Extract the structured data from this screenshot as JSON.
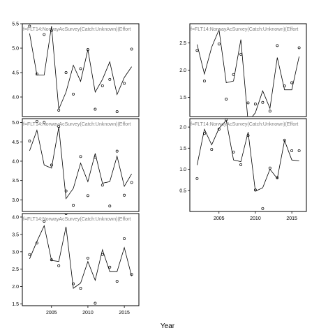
{
  "figure": {
    "xlabel": "Year"
  },
  "chart_data": [
    {
      "type": "scatter",
      "strip_label": "f=FLT14:NorwayAcSurvey(Catch:Unknown)(Effort",
      "xlim": [
        2001,
        2017
      ],
      "ylim": [
        3.6,
        5.5
      ],
      "y_ticks": [
        4.0,
        4.5,
        5.0,
        5.5
      ],
      "show_x_ticks": false,
      "observed": [
        [
          2002,
          5.45
        ],
        [
          2003,
          4.47
        ],
        [
          2004,
          5.28
        ],
        [
          2005,
          5.36
        ],
        [
          2006,
          3.73
        ],
        [
          2007,
          4.5
        ],
        [
          2008,
          4.06
        ],
        [
          2009,
          4.58
        ],
        [
          2010,
          4.97
        ],
        [
          2011,
          3.75
        ],
        [
          2012,
          4.23
        ],
        [
          2013,
          4.36
        ],
        [
          2014,
          3.7
        ],
        [
          2015,
          4.28
        ],
        [
          2016,
          4.98
        ]
      ],
      "fitted": [
        [
          2002,
          5.3
        ],
        [
          2003,
          4.45
        ],
        [
          2004,
          4.45
        ],
        [
          2005,
          5.45
        ],
        [
          2006,
          3.75
        ],
        [
          2007,
          4.1
        ],
        [
          2008,
          4.65
        ],
        [
          2009,
          4.32
        ],
        [
          2010,
          4.97
        ],
        [
          2011,
          4.1
        ],
        [
          2012,
          4.36
        ],
        [
          2013,
          4.72
        ],
        [
          2014,
          4.05
        ],
        [
          2015,
          4.4
        ],
        [
          2016,
          4.62
        ]
      ]
    },
    {
      "type": "scatter",
      "strip_label": "f=FLT14:NorwayAcSurvey(Catch:Unknown)(Effort",
      "xlim": [
        2001,
        2017
      ],
      "ylim": [
        1.15,
        2.85
      ],
      "y_ticks": [
        1.5,
        2.0,
        2.5
      ],
      "show_x_ticks": false,
      "observed": [
        [
          2002,
          2.36
        ],
        [
          2003,
          1.8
        ],
        [
          2004,
          2.87
        ],
        [
          2005,
          2.48
        ],
        [
          2006,
          1.47
        ],
        [
          2007,
          1.92
        ],
        [
          2008,
          2.29
        ],
        [
          2009,
          1.4
        ],
        [
          2010,
          1.38
        ],
        [
          2011,
          1.41
        ],
        [
          2012,
          1.25
        ],
        [
          2013,
          2.45
        ],
        [
          2014,
          1.71
        ],
        [
          2015,
          1.77
        ],
        [
          2016,
          2.41
        ]
      ],
      "fitted": [
        [
          2002,
          2.47
        ],
        [
          2003,
          1.93
        ],
        [
          2004,
          2.42
        ],
        [
          2005,
          2.74
        ],
        [
          2006,
          1.77
        ],
        [
          2007,
          1.8
        ],
        [
          2008,
          2.56
        ],
        [
          2009,
          1.05
        ],
        [
          2010,
          1.22
        ],
        [
          2011,
          1.62
        ],
        [
          2012,
          1.3
        ],
        [
          2013,
          2.23
        ],
        [
          2014,
          1.64
        ],
        [
          2015,
          1.64
        ],
        [
          2016,
          2.25
        ]
      ]
    },
    {
      "type": "scatter",
      "strip_label": "f=FLT14:NorwayAcSurvey(Catch:Unknown)(Effort",
      "xlim": [
        2001,
        2017
      ],
      "ylim": [
        2.7,
        5.1
      ],
      "y_ticks": [
        3.0,
        3.5,
        4.0,
        4.5,
        5.0
      ],
      "show_x_ticks": false,
      "observed": [
        [
          2002,
          4.52
        ],
        [
          2003,
          5.03
        ],
        [
          2004,
          5.0
        ],
        [
          2005,
          3.9
        ],
        [
          2006,
          4.9
        ],
        [
          2007,
          3.23
        ],
        [
          2008,
          2.86
        ],
        [
          2009,
          4.12
        ],
        [
          2010,
          3.11
        ],
        [
          2011,
          4.1
        ],
        [
          2012,
          3.38
        ],
        [
          2013,
          2.84
        ],
        [
          2014,
          4.26
        ],
        [
          2015,
          3.12
        ],
        [
          2016,
          3.45
        ]
      ],
      "fitted": [
        [
          2002,
          4.27
        ],
        [
          2003,
          4.8
        ],
        [
          2004,
          3.9
        ],
        [
          2005,
          3.82
        ],
        [
          2006,
          4.88
        ],
        [
          2007,
          3.03
        ],
        [
          2008,
          3.3
        ],
        [
          2009,
          3.95
        ],
        [
          2010,
          3.47
        ],
        [
          2011,
          4.2
        ],
        [
          2012,
          3.43
        ],
        [
          2013,
          3.47
        ],
        [
          2014,
          4.13
        ],
        [
          2015,
          3.35
        ],
        [
          2016,
          3.67
        ]
      ]
    },
    {
      "type": "scatter",
      "strip_label": "f=FLT14:NorwayAcSurvey(Catch:Unknown)(Effort",
      "xlim": [
        2001,
        2017
      ],
      "ylim": [
        0,
        2.2
      ],
      "y_ticks": [
        0.5,
        1.0,
        1.5,
        2.0
      ],
      "show_x_ticks": true,
      "x_ticks": [
        2005,
        2010,
        2015
      ],
      "observed": [
        [
          2002,
          0.78
        ],
        [
          2003,
          1.85
        ],
        [
          2004,
          1.47
        ],
        [
          2005,
          1.95
        ],
        [
          2006,
          2.17
        ],
        [
          2007,
          1.41
        ],
        [
          2008,
          1.11
        ],
        [
          2009,
          1.8
        ],
        [
          2010,
          0.51
        ],
        [
          2011,
          0.07
        ],
        [
          2012,
          1.03
        ],
        [
          2013,
          0.8
        ],
        [
          2014,
          1.69
        ],
        [
          2015,
          1.44
        ],
        [
          2016,
          1.44
        ]
      ],
      "fitted": [
        [
          2002,
          1.1
        ],
        [
          2003,
          1.95
        ],
        [
          2004,
          1.58
        ],
        [
          2005,
          1.97
        ],
        [
          2006,
          2.16
        ],
        [
          2007,
          1.22
        ],
        [
          2008,
          1.18
        ],
        [
          2009,
          1.88
        ],
        [
          2010,
          0.48
        ],
        [
          2011,
          0.56
        ],
        [
          2012,
          1.0
        ],
        [
          2013,
          0.78
        ],
        [
          2014,
          1.68
        ],
        [
          2015,
          1.22
        ],
        [
          2016,
          1.2
        ]
      ]
    },
    {
      "type": "scatter",
      "strip_label": "f=FLT14:NorwayAcSurvey(Catch:Unknown)(Effort",
      "xlim": [
        2001,
        2017
      ],
      "ylim": [
        1.45,
        4.1
      ],
      "y_ticks": [
        1.5,
        2.0,
        2.5,
        3.0,
        3.5,
        4.0
      ],
      "show_x_ticks": true,
      "x_ticks": [
        2005,
        2010,
        2015
      ],
      "observed": [
        [
          2002,
          2.92
        ],
        [
          2003,
          3.25
        ],
        [
          2004,
          3.88
        ],
        [
          2005,
          2.77
        ],
        [
          2006,
          2.6
        ],
        [
          2007,
          4.1
        ],
        [
          2008,
          2.08
        ],
        [
          2009,
          1.95
        ],
        [
          2010,
          2.82
        ],
        [
          2011,
          1.52
        ],
        [
          2012,
          2.92
        ],
        [
          2013,
          2.56
        ],
        [
          2014,
          2.15
        ],
        [
          2015,
          3.38
        ],
        [
          2016,
          2.35
        ]
      ],
      "fitted": [
        [
          2002,
          2.8
        ],
        [
          2003,
          3.3
        ],
        [
          2004,
          3.75
        ],
        [
          2005,
          2.75
        ],
        [
          2006,
          2.72
        ],
        [
          2007,
          3.72
        ],
        [
          2008,
          1.95
        ],
        [
          2009,
          2.1
        ],
        [
          2010,
          2.72
        ],
        [
          2011,
          2.18
        ],
        [
          2012,
          3.06
        ],
        [
          2013,
          2.43
        ],
        [
          2014,
          2.43
        ],
        [
          2015,
          3.12
        ],
        [
          2016,
          2.3
        ]
      ]
    }
  ]
}
